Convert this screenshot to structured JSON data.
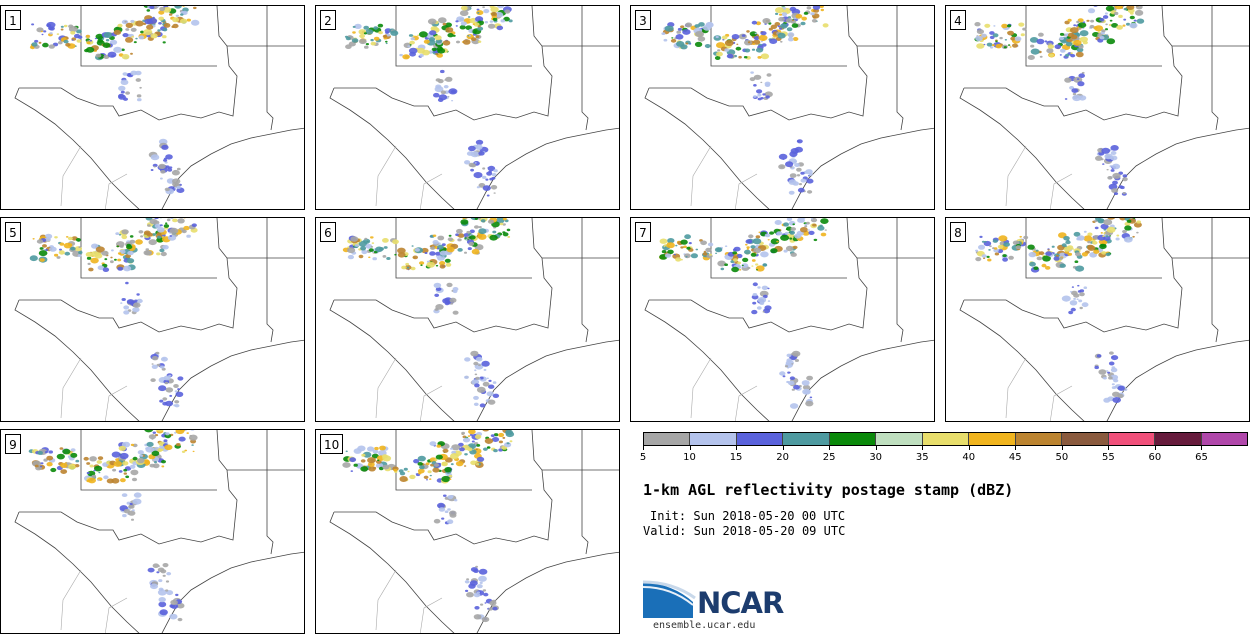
{
  "panels": [
    {
      "label": "1"
    },
    {
      "label": "2"
    },
    {
      "label": "3"
    },
    {
      "label": "4"
    },
    {
      "label": "5"
    },
    {
      "label": "6"
    },
    {
      "label": "7"
    },
    {
      "label": "8"
    },
    {
      "label": "9"
    },
    {
      "label": "10"
    }
  ],
  "colorbar": {
    "colors": [
      "#a6a6a6",
      "#b4c3ec",
      "#5a62dc",
      "#4e9aa0",
      "#0a890a",
      "#bfdfbf",
      "#e8de6c",
      "#f0b41e",
      "#bc8430",
      "#8a5a3e",
      "#f0507a",
      "#661b3c",
      "#b047aa"
    ],
    "ticks": [
      "5",
      "10",
      "15",
      "20",
      "25",
      "30",
      "35",
      "40",
      "45",
      "50",
      "55",
      "60",
      "65"
    ]
  },
  "title": "1-km AGL reflectivity postage stamp (dBZ)",
  "init": "Init: Sun 2018-05-20 00 UTC",
  "valid": "Valid: Sun 2018-05-20 09 UTC",
  "logo_text": "NCAR",
  "url": "ensemble.ucar.edu"
}
